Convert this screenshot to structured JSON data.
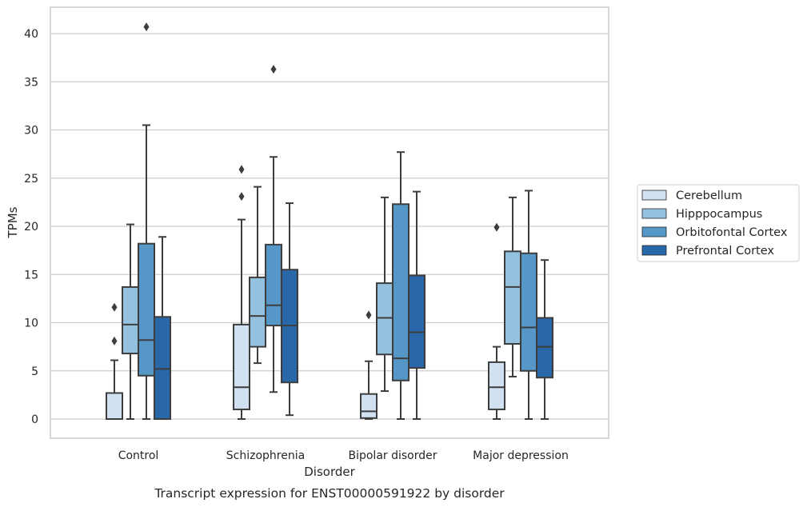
{
  "chart_data": {
    "type": "box",
    "title": "",
    "caption": "Transcript expression for ENST00000591922 by disorder",
    "xlabel": "Disorder",
    "ylabel": "TPMs",
    "ylim": [
      -2,
      43
    ],
    "yticks": [
      "0",
      "5",
      "10",
      "15",
      "20",
      "25",
      "30",
      "35",
      "40"
    ],
    "grid": "horizontal",
    "legend_position": "right",
    "categories": [
      "Control",
      "Schizophrenia",
      "Bipolar disorder",
      "Major depression"
    ],
    "series": [
      {
        "name": "Cerebellum",
        "color": "#d1e1f1",
        "boxes": [
          {
            "whislo": 0,
            "q1": 0,
            "med": 0,
            "q3": 2.7,
            "whishi": 6.1,
            "fliers": [
              8.1,
              11.6
            ]
          },
          {
            "whislo": 0,
            "q1": 1.0,
            "med": 3.3,
            "q3": 9.8,
            "whishi": 20.7,
            "fliers": [
              23.1,
              25.9
            ]
          },
          {
            "whislo": 0,
            "q1": 0.1,
            "med": 0.8,
            "q3": 2.6,
            "whishi": 6.0,
            "fliers": [
              10.8
            ]
          },
          {
            "whislo": 0,
            "q1": 1.0,
            "med": 3.3,
            "q3": 5.9,
            "whishi": 7.5,
            "fliers": [
              19.9
            ]
          }
        ]
      },
      {
        "name": "Hipppocampus",
        "color": "#94c1de",
        "boxes": [
          {
            "whislo": 0,
            "q1": 6.8,
            "med": 9.8,
            "q3": 13.7,
            "whishi": 20.2,
            "fliers": []
          },
          {
            "whislo": 5.8,
            "q1": 7.5,
            "med": 10.7,
            "q3": 14.7,
            "whishi": 24.1,
            "fliers": []
          },
          {
            "whislo": 2.9,
            "q1": 6.7,
            "med": 10.5,
            "q3": 14.1,
            "whishi": 23.0,
            "fliers": []
          },
          {
            "whislo": 4.4,
            "q1": 7.8,
            "med": 13.7,
            "q3": 17.4,
            "whishi": 23.0,
            "fliers": []
          }
        ]
      },
      {
        "name": "Orbitofontal Cortex",
        "color": "#5597c6",
        "boxes": [
          {
            "whislo": 0,
            "q1": 4.5,
            "med": 8.2,
            "q3": 18.2,
            "whishi": 30.5,
            "fliers": [
              40.7
            ]
          },
          {
            "whislo": 2.8,
            "q1": 9.7,
            "med": 11.8,
            "q3": 18.1,
            "whishi": 27.2,
            "fliers": [
              36.3
            ]
          },
          {
            "whislo": 0,
            "q1": 4.0,
            "med": 6.3,
            "q3": 22.3,
            "whishi": 27.7,
            "fliers": []
          },
          {
            "whislo": 0,
            "q1": 5.0,
            "med": 9.5,
            "q3": 17.2,
            "whishi": 23.7,
            "fliers": []
          }
        ]
      },
      {
        "name": "Prefrontal Cortex",
        "color": "#2867a8",
        "boxes": [
          {
            "whislo": 0,
            "q1": 0,
            "med": 5.2,
            "q3": 10.6,
            "whishi": 18.9,
            "fliers": []
          },
          {
            "whislo": 0.4,
            "q1": 3.8,
            "med": 9.7,
            "q3": 15.5,
            "whishi": 22.4,
            "fliers": []
          },
          {
            "whislo": 0,
            "q1": 5.3,
            "med": 9.0,
            "q3": 14.9,
            "whishi": 23.6,
            "fliers": []
          },
          {
            "whislo": 0,
            "q1": 4.3,
            "med": 7.5,
            "q3": 10.5,
            "whishi": 16.5,
            "fliers": []
          }
        ]
      }
    ]
  }
}
